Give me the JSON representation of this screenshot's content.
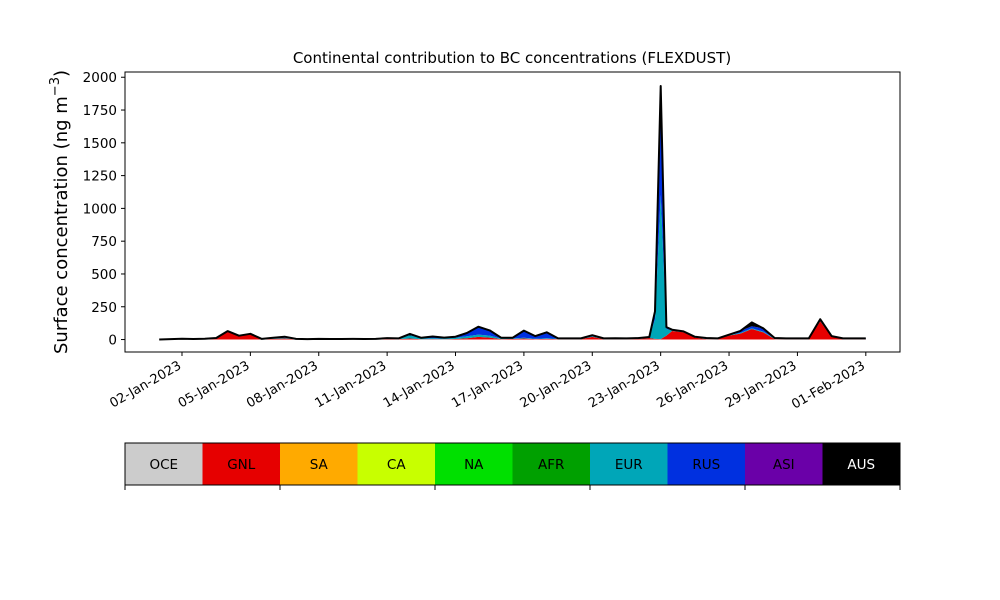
{
  "chart_data": {
    "type": "area",
    "stacked": true,
    "title": "Continental contribution to BC concentrations (FLEXDUST)",
    "ylabel": "Surface concentration (ng m$^{-3}$)",
    "ylabel_main": "Surface concentration (ng m",
    "ylabel_exp": "−3",
    "ylabel_close": ")",
    "xlabel": "",
    "ylim": [
      -95,
      2040
    ],
    "yticks": [
      0,
      250,
      500,
      750,
      1000,
      1250,
      1500,
      1750,
      2000
    ],
    "xlim": [
      "2022-12-30T12:00",
      "2023-02-02T12:00"
    ],
    "xticks": [
      {
        "date": "2023-01-02",
        "label": "02-Jan-2023"
      },
      {
        "date": "2023-01-05",
        "label": "05-Jan-2023"
      },
      {
        "date": "2023-01-08",
        "label": "08-Jan-2023"
      },
      {
        "date": "2023-01-11",
        "label": "11-Jan-2023"
      },
      {
        "date": "2023-01-14",
        "label": "14-Jan-2023"
      },
      {
        "date": "2023-01-17",
        "label": "17-Jan-2023"
      },
      {
        "date": "2023-01-20",
        "label": "20-Jan-2023"
      },
      {
        "date": "2023-01-23",
        "label": "23-Jan-2023"
      },
      {
        "date": "2023-01-26",
        "label": "26-Jan-2023"
      },
      {
        "date": "2023-01-29",
        "label": "29-Jan-2023"
      },
      {
        "date": "2023-02-01",
        "label": "01-Feb-2023"
      }
    ],
    "x": [
      "2023-01-01T00:00",
      "2023-01-01T12:00",
      "2023-01-02T00:00",
      "2023-01-02T12:00",
      "2023-01-03T00:00",
      "2023-01-03T12:00",
      "2023-01-04T00:00",
      "2023-01-04T12:00",
      "2023-01-05T00:00",
      "2023-01-05T12:00",
      "2023-01-06T00:00",
      "2023-01-06T12:00",
      "2023-01-07T00:00",
      "2023-01-07T12:00",
      "2023-01-08T00:00",
      "2023-01-08T12:00",
      "2023-01-09T00:00",
      "2023-01-09T12:00",
      "2023-01-10T00:00",
      "2023-01-10T12:00",
      "2023-01-11T00:00",
      "2023-01-11T12:00",
      "2023-01-12T00:00",
      "2023-01-12T12:00",
      "2023-01-13T00:00",
      "2023-01-13T12:00",
      "2023-01-14T00:00",
      "2023-01-14T12:00",
      "2023-01-15T00:00",
      "2023-01-15T12:00",
      "2023-01-16T00:00",
      "2023-01-16T12:00",
      "2023-01-17T00:00",
      "2023-01-17T12:00",
      "2023-01-18T00:00",
      "2023-01-18T12:00",
      "2023-01-19T00:00",
      "2023-01-19T12:00",
      "2023-01-20T00:00",
      "2023-01-20T12:00",
      "2023-01-21T00:00",
      "2023-01-21T12:00",
      "2023-01-22T00:00",
      "2023-01-22T12:00",
      "2023-01-22T18:00",
      "2023-01-23T00:00",
      "2023-01-23T06:00",
      "2023-01-23T12:00",
      "2023-01-24T00:00",
      "2023-01-24T12:00",
      "2023-01-25T00:00",
      "2023-01-25T12:00",
      "2023-01-26T00:00",
      "2023-01-26T12:00",
      "2023-01-27T00:00",
      "2023-01-27T12:00",
      "2023-01-28T00:00",
      "2023-01-28T12:00",
      "2023-01-29T00:00",
      "2023-01-29T12:00",
      "2023-01-30T00:00",
      "2023-01-30T12:00",
      "2023-01-31T00:00",
      "2023-01-31T12:00",
      "2023-02-01T00:00"
    ],
    "series": [
      {
        "name": "OCE",
        "color": "#cccccc",
        "values": [
          0,
          0,
          0,
          0,
          0,
          0,
          0,
          0,
          0,
          0,
          0,
          0,
          0,
          0,
          0,
          0,
          0,
          0,
          0,
          0,
          0,
          0,
          0,
          0,
          0,
          0,
          0,
          0,
          0,
          0,
          0,
          0,
          0,
          0,
          0,
          0,
          0,
          0,
          0,
          0,
          0,
          0,
          0,
          0,
          0,
          0,
          0,
          0,
          0,
          0,
          0,
          0,
          0,
          0,
          0,
          0,
          0,
          0,
          0,
          0,
          0,
          0,
          0,
          0,
          0
        ]
      },
      {
        "name": "GNL",
        "color": "#e60000",
        "values": [
          0,
          2,
          4,
          3,
          4,
          10,
          60,
          25,
          40,
          3,
          5,
          8,
          3,
          2,
          3,
          2,
          2,
          2,
          2,
          3,
          5,
          3,
          8,
          2,
          3,
          2,
          4,
          10,
          20,
          15,
          3,
          4,
          8,
          3,
          5,
          3,
          3,
          3,
          20,
          3,
          3,
          3,
          4,
          12,
          5,
          3,
          30,
          65,
          55,
          15,
          3,
          3,
          30,
          45,
          80,
          55,
          3,
          3,
          3,
          3,
          140,
          20,
          3,
          3,
          3
        ]
      },
      {
        "name": "SA",
        "color": "#ffaa00",
        "values": [
          0,
          0,
          0,
          0,
          0,
          0,
          0,
          0,
          0,
          0,
          0,
          0,
          0,
          0,
          0,
          0,
          0,
          0,
          0,
          0,
          0,
          0,
          0,
          0,
          0,
          0,
          0,
          0,
          0,
          0,
          0,
          0,
          0,
          0,
          0,
          0,
          0,
          0,
          0,
          0,
          0,
          0,
          0,
          0,
          0,
          0,
          0,
          0,
          0,
          0,
          0,
          0,
          0,
          0,
          0,
          0,
          0,
          0,
          0,
          0,
          0,
          0,
          0,
          0,
          0
        ]
      },
      {
        "name": "CA",
        "color": "#c8ff00",
        "values": [
          0,
          0,
          0,
          0,
          0,
          0,
          0,
          0,
          0,
          0,
          0,
          0,
          0,
          0,
          0,
          0,
          0,
          0,
          0,
          0,
          0,
          0,
          0,
          0,
          0,
          0,
          0,
          0,
          0,
          0,
          0,
          0,
          0,
          0,
          0,
          0,
          0,
          0,
          0,
          0,
          0,
          0,
          0,
          0,
          0,
          0,
          0,
          0,
          0,
          0,
          0,
          0,
          0,
          0,
          0,
          0,
          0,
          0,
          0,
          0,
          0,
          0,
          0,
          0,
          0
        ]
      },
      {
        "name": "NA",
        "color": "#00e000",
        "values": [
          0,
          0,
          0,
          0,
          0,
          0,
          1,
          1,
          1,
          0,
          0,
          0,
          0,
          0,
          0,
          0,
          0,
          0,
          0,
          0,
          0,
          0,
          0,
          0,
          0,
          0,
          0,
          0,
          0,
          0,
          0,
          0,
          0,
          0,
          0,
          0,
          0,
          0,
          0,
          0,
          0,
          0,
          0,
          0,
          0,
          0,
          0,
          0,
          0,
          0,
          0,
          0,
          0,
          0,
          0,
          0,
          0,
          0,
          0,
          0,
          0,
          0,
          0,
          0,
          0
        ]
      },
      {
        "name": "AFR",
        "color": "#00a000",
        "values": [
          0,
          0,
          0,
          0,
          0,
          0,
          0,
          0,
          0,
          0,
          0,
          0,
          0,
          0,
          0,
          0,
          0,
          0,
          0,
          0,
          0,
          0,
          0,
          0,
          0,
          0,
          0,
          0,
          0,
          0,
          0,
          0,
          0,
          0,
          0,
          0,
          0,
          0,
          0,
          0,
          0,
          0,
          0,
          0,
          0,
          0,
          0,
          0,
          0,
          0,
          0,
          0,
          0,
          0,
          0,
          0,
          0,
          0,
          0,
          0,
          0,
          0,
          0,
          0,
          0
        ]
      },
      {
        "name": "EUR",
        "color": "#00a6b8",
        "values": [
          0,
          1,
          2,
          1,
          2,
          2,
          3,
          3,
          3,
          2,
          4,
          6,
          2,
          1,
          2,
          2,
          2,
          3,
          2,
          2,
          4,
          4,
          25,
          6,
          8,
          5,
          10,
          15,
          18,
          15,
          5,
          4,
          5,
          3,
          5,
          3,
          3,
          3,
          5,
          3,
          4,
          3,
          4,
          5,
          150,
          1100,
          50,
          5,
          4,
          3,
          6,
          3,
          5,
          6,
          6,
          6,
          4,
          3,
          3,
          3,
          5,
          3,
          3,
          3,
          3
        ]
      },
      {
        "name": "RUS",
        "color": "#0030e0",
        "values": [
          0,
          0,
          0,
          0,
          0,
          0,
          0,
          0,
          0,
          0,
          4,
          8,
          0,
          0,
          0,
          0,
          0,
          0,
          0,
          0,
          2,
          2,
          10,
          5,
          12,
          8,
          8,
          25,
          60,
          40,
          6,
          5,
          55,
          20,
          45,
          3,
          3,
          3,
          8,
          3,
          3,
          3,
          3,
          2,
          50,
          760,
          10,
          5,
          3,
          3,
          3,
          3,
          2,
          15,
          15,
          25,
          5,
          3,
          3,
          3,
          10,
          3,
          3,
          3,
          3
        ]
      },
      {
        "name": "ASI",
        "color": "#6a00a8",
        "values": [
          0,
          0,
          0,
          0,
          0,
          0,
          0,
          0,
          0,
          0,
          0,
          0,
          0,
          0,
          0,
          0,
          0,
          0,
          0,
          0,
          0,
          0,
          0,
          0,
          0,
          0,
          0,
          0,
          0,
          0,
          0,
          0,
          0,
          0,
          0,
          0,
          0,
          0,
          0,
          0,
          0,
          0,
          0,
          0,
          10,
          70,
          5,
          0,
          0,
          0,
          0,
          0,
          0,
          0,
          0,
          0,
          0,
          0,
          0,
          0,
          0,
          0,
          0,
          0,
          0
        ]
      },
      {
        "name": "AUS",
        "color": "#000000",
        "values": [
          0,
          0,
          0,
          0,
          0,
          0,
          0,
          0,
          0,
          0,
          0,
          0,
          0,
          0,
          0,
          0,
          0,
          0,
          0,
          0,
          0,
          0,
          0,
          0,
          0,
          0,
          0,
          0,
          0,
          0,
          0,
          0,
          0,
          0,
          0,
          0,
          0,
          0,
          0,
          0,
          0,
          0,
          0,
          0,
          0,
          0,
          0,
          0,
          0,
          0,
          0,
          0,
          0,
          0,
          30,
          0,
          0,
          0,
          0,
          0,
          0,
          0,
          0,
          0,
          0
        ]
      }
    ],
    "colorbar": {
      "labels": [
        "OCE",
        "GNL",
        "SA",
        "CA",
        "NA",
        "AFR",
        "EUR",
        "RUS",
        "ASI",
        "AUS"
      ],
      "colors": [
        "#cccccc",
        "#e60000",
        "#ffaa00",
        "#c8ff00",
        "#00e000",
        "#00a000",
        "#00a6b8",
        "#0030e0",
        "#6a00a8",
        "#000000"
      ],
      "label_colors": [
        "#000000",
        "#000000",
        "#000000",
        "#000000",
        "#000000",
        "#000000",
        "#000000",
        "#000000",
        "#000000",
        "#ffffff"
      ]
    },
    "grid": false,
    "legend": "bottom colorbar"
  }
}
